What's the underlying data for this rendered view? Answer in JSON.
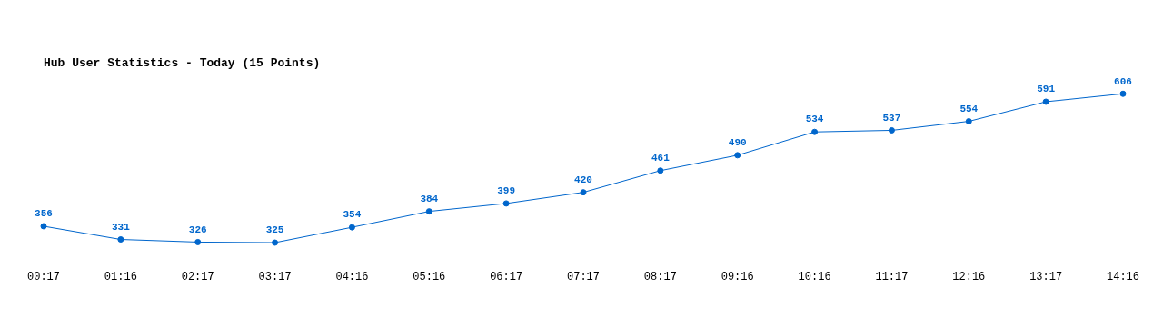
{
  "chart_data": {
    "type": "line",
    "title": "Hub User Statistics - Today (15 Points)",
    "categories": [
      "00:17",
      "01:16",
      "02:17",
      "03:17",
      "04:16",
      "05:16",
      "06:17",
      "07:17",
      "08:17",
      "09:16",
      "10:16",
      "11:17",
      "12:16",
      "13:17",
      "14:16"
    ],
    "series": [
      {
        "color": "#0066cc",
        "values": [
          356,
          331,
          326,
          325,
          354,
          384,
          399,
          420,
          461,
          490,
          534,
          537,
          554,
          591,
          606
        ]
      }
    ],
    "data_labels": true,
    "marker": "circle",
    "grid": false,
    "legend": false,
    "tick_labels": "x"
  }
}
